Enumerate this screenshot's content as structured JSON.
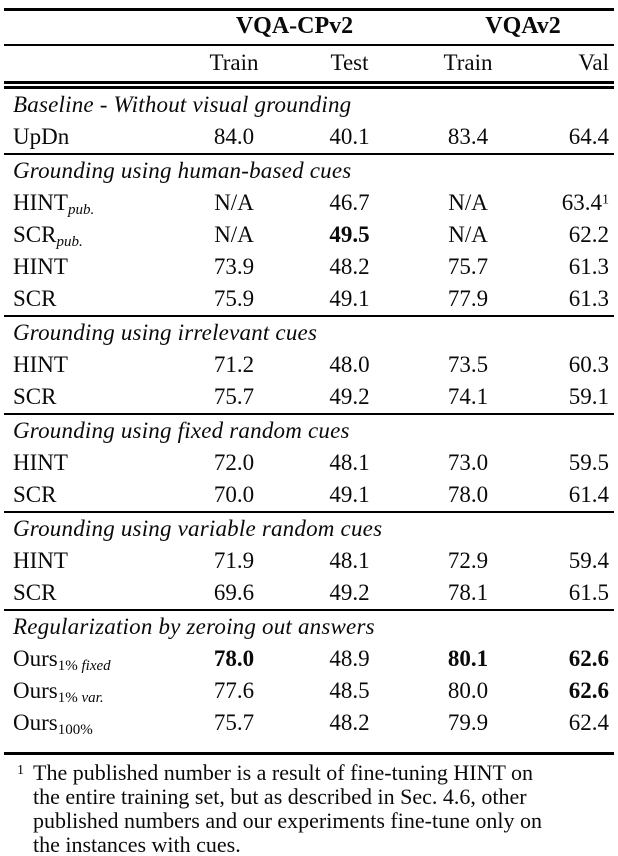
{
  "page": {
    "background": "#ffffff",
    "text_color": "#0a0a0a",
    "rule_color": "#000000"
  },
  "table": {
    "col_groups": [
      {
        "label": "VQA-CPv2",
        "span": 2
      },
      {
        "label": "VQAv2",
        "span": 2
      }
    ],
    "sub_headers": [
      "Train",
      "Test",
      "Train",
      "Val"
    ],
    "sections": [
      {
        "title": "Baseline - Without visual grounding",
        "rows": [
          {
            "label": {
              "base": "UpDn",
              "subs": []
            },
            "cells": [
              {
                "text": "84.0"
              },
              {
                "text": "40.1"
              },
              {
                "text": "83.4"
              },
              {
                "text": "64.4"
              }
            ]
          }
        ]
      },
      {
        "title": "Grounding using human-based cues",
        "rows": [
          {
            "label": {
              "base": "HINT",
              "subs": [
                {
                  "text": "pub.",
                  "italic": true
                }
              ]
            },
            "cells": [
              {
                "text": "N/A"
              },
              {
                "text": "46.7"
              },
              {
                "text": "N/A"
              },
              {
                "text": "63.4",
                "sup": "1"
              }
            ]
          },
          {
            "label": {
              "base": "SCR",
              "subs": [
                {
                  "text": "pub.",
                  "italic": true
                }
              ]
            },
            "cells": [
              {
                "text": "N/A"
              },
              {
                "text": "49.5",
                "bold": true
              },
              {
                "text": "N/A"
              },
              {
                "text": "62.2"
              }
            ]
          },
          {
            "label": {
              "base": "HINT",
              "subs": []
            },
            "cells": [
              {
                "text": "73.9"
              },
              {
                "text": "48.2"
              },
              {
                "text": "75.7"
              },
              {
                "text": "61.3"
              }
            ]
          },
          {
            "label": {
              "base": "SCR",
              "subs": []
            },
            "cells": [
              {
                "text": "75.9"
              },
              {
                "text": "49.1"
              },
              {
                "text": "77.9"
              },
              {
                "text": "61.3"
              }
            ]
          }
        ]
      },
      {
        "title": "Grounding using irrelevant cues",
        "rows": [
          {
            "label": {
              "base": "HINT",
              "subs": []
            },
            "cells": [
              {
                "text": "71.2"
              },
              {
                "text": "48.0"
              },
              {
                "text": "73.5"
              },
              {
                "text": "60.3"
              }
            ]
          },
          {
            "label": {
              "base": "SCR",
              "subs": []
            },
            "cells": [
              {
                "text": "75.7"
              },
              {
                "text": "49.2"
              },
              {
                "text": "74.1"
              },
              {
                "text": "59.1"
              }
            ]
          }
        ]
      },
      {
        "title": "Grounding using fixed random cues",
        "rows": [
          {
            "label": {
              "base": "HINT",
              "subs": []
            },
            "cells": [
              {
                "text": "72.0"
              },
              {
                "text": "48.1"
              },
              {
                "text": "73.0"
              },
              {
                "text": "59.5"
              }
            ]
          },
          {
            "label": {
              "base": "SCR",
              "subs": []
            },
            "cells": [
              {
                "text": "70.0"
              },
              {
                "text": "49.1"
              },
              {
                "text": "78.0"
              },
              {
                "text": "61.4"
              }
            ]
          }
        ]
      },
      {
        "title": "Grounding using variable random cues",
        "rows": [
          {
            "label": {
              "base": "HINT",
              "subs": []
            },
            "cells": [
              {
                "text": "71.9"
              },
              {
                "text": "48.1"
              },
              {
                "text": "72.9"
              },
              {
                "text": "59.4"
              }
            ]
          },
          {
            "label": {
              "base": "SCR",
              "subs": []
            },
            "cells": [
              {
                "text": "69.6"
              },
              {
                "text": "49.2"
              },
              {
                "text": "78.1"
              },
              {
                "text": "61.5"
              }
            ]
          }
        ]
      },
      {
        "title": "Regularization by zeroing out answers",
        "rows": [
          {
            "label": {
              "base": "Ours",
              "subs": [
                {
                  "text": "1% ",
                  "italic": false
                },
                {
                  "text": "fixed",
                  "italic": true
                }
              ]
            },
            "cells": [
              {
                "text": "78.0",
                "bold": true
              },
              {
                "text": "48.9"
              },
              {
                "text": "80.1",
                "bold": true
              },
              {
                "text": "62.6",
                "bold": true
              }
            ]
          },
          {
            "label": {
              "base": "Ours",
              "subs": [
                {
                  "text": "1% ",
                  "italic": false
                },
                {
                  "text": "var.",
                  "italic": true
                }
              ]
            },
            "cells": [
              {
                "text": "77.6"
              },
              {
                "text": "48.5"
              },
              {
                "text": "80.0"
              },
              {
                "text": "62.6",
                "bold": true
              }
            ]
          },
          {
            "label": {
              "base": "Ours",
              "subs": [
                {
                  "text": "100%",
                  "italic": false
                }
              ]
            },
            "cells": [
              {
                "text": "75.7"
              },
              {
                "text": "48.2"
              },
              {
                "text": "79.9"
              },
              {
                "text": "62.4"
              }
            ]
          }
        ]
      }
    ]
  },
  "footnote": {
    "marker": "1",
    "lines": [
      "The published number is a result of fine-tuning HINT on",
      "the entire training set, but as described in Sec. 4.6, other",
      "published numbers and our experiments fine-tune only on",
      "the instances with cues."
    ]
  }
}
